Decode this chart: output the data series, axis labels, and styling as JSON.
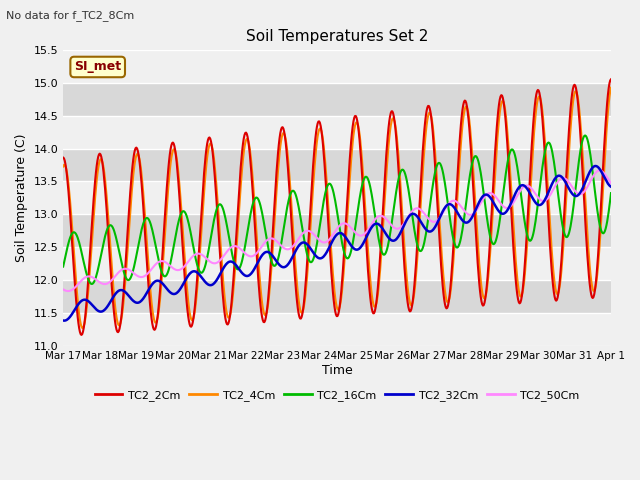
{
  "title": "Soil Temperatures Set 2",
  "subtitle": "No data for f_TC2_8Cm",
  "xlabel": "Time",
  "ylabel": "Soil Temperature (C)",
  "ylim": [
    11.0,
    15.5
  ],
  "yticks": [
    11.0,
    11.5,
    12.0,
    12.5,
    13.0,
    13.5,
    14.0,
    14.5,
    15.0,
    15.5
  ],
  "bg_color": "#d8d8d8",
  "grid_color": "#f0f0f0",
  "series_colors": {
    "TC2_2Cm": "#dd0000",
    "TC2_4Cm": "#ff8800",
    "TC2_16Cm": "#00bb00",
    "TC2_32Cm": "#0000cc",
    "TC2_50Cm": "#ff88ff"
  },
  "annotation_text": "SI_met",
  "annotation_box_facecolor": "#ffffcc",
  "annotation_box_edgecolor": "#996600",
  "fig_bg": "#f0f0f0",
  "n_points": 720,
  "x_day_labels": [
    "Mar 17",
    "Mar 18",
    "Mar 19",
    "Mar 20",
    "Mar 21",
    "Mar 22",
    "Mar 23",
    "Mar 24",
    "Mar 25",
    "Mar 26",
    "Mar 27",
    "Mar 28",
    "Mar 29",
    "Mar 30",
    "Mar 31",
    "Apr 1"
  ],
  "legend_labels": [
    "TC2_2Cm",
    "TC2_4Cm",
    "TC2_16Cm",
    "TC2_32Cm",
    "TC2_50Cm"
  ]
}
